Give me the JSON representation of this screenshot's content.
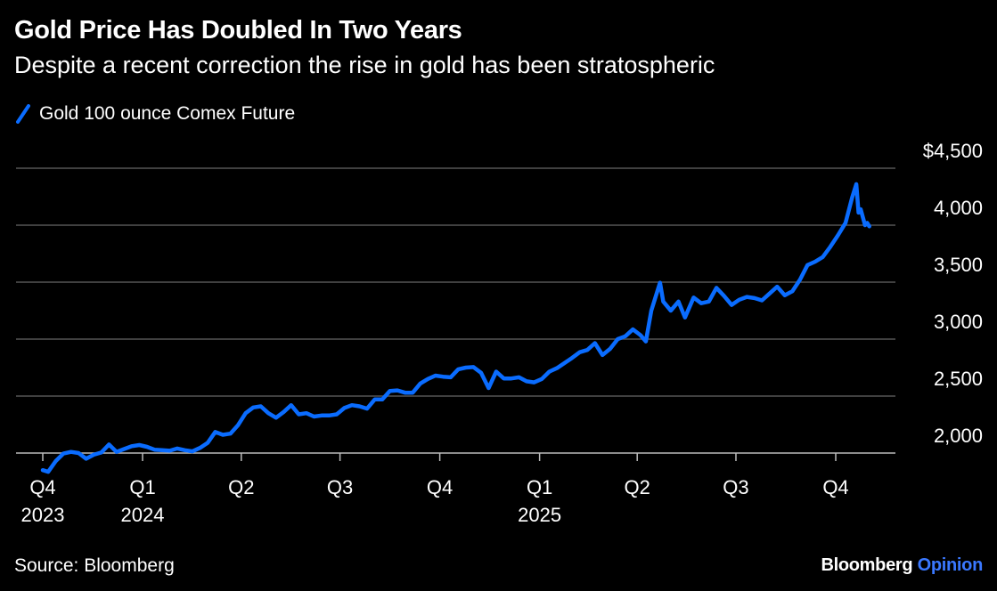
{
  "header": {
    "title": "Gold Price Has Doubled In Two Years",
    "subtitle": "Despite a recent correction the rise in gold has been stratospheric"
  },
  "footer": {
    "source": "Source: Bloomberg",
    "brand_main": "Bloomberg",
    "brand_accent": "Opinion"
  },
  "colors": {
    "background": "#000000",
    "series": "#0a6cff",
    "grid": "#555555",
    "text": "#ffffff",
    "brand_accent": "#3a78ff"
  },
  "chart_data": {
    "type": "line",
    "title": "Gold Price Has Doubled In Two Years",
    "subtitle": "Despite a recent correction the rise in gold has been stratospheric",
    "legend": "top-left",
    "grid": true,
    "ylim": [
      1750,
      4500
    ],
    "y_ticks": [
      {
        "value": 4500,
        "label": "$4,500"
      },
      {
        "value": 4000,
        "label": "4,000"
      },
      {
        "value": 3500,
        "label": "3,500"
      },
      {
        "value": 3000,
        "label": "3,000"
      },
      {
        "value": 2500,
        "label": "2,500"
      },
      {
        "value": 2000,
        "label": "2,000"
      }
    ],
    "x_ticks": [
      {
        "date": "2023-10-01",
        "label": "Q4",
        "year": "2023"
      },
      {
        "date": "2024-01-01",
        "label": "Q1",
        "year": "2024"
      },
      {
        "date": "2024-04-01",
        "label": "Q2",
        "year": ""
      },
      {
        "date": "2024-07-01",
        "label": "Q3",
        "year": ""
      },
      {
        "date": "2024-10-01",
        "label": "Q4",
        "year": ""
      },
      {
        "date": "2025-01-01",
        "label": "Q1",
        "year": "2025"
      },
      {
        "date": "2025-04-01",
        "label": "Q2",
        "year": ""
      },
      {
        "date": "2025-07-01",
        "label": "Q3",
        "year": ""
      },
      {
        "date": "2025-10-01",
        "label": "Q4",
        "year": ""
      }
    ],
    "series": [
      {
        "name": "Gold 100 ounce Comex Future",
        "points": [
          [
            "2023-10-01",
            1850
          ],
          [
            "2023-10-06",
            1835
          ],
          [
            "2023-10-13",
            1930
          ],
          [
            "2023-10-20",
            1995
          ],
          [
            "2023-10-27",
            2010
          ],
          [
            "2023-11-03",
            2000
          ],
          [
            "2023-11-10",
            1950
          ],
          [
            "2023-11-17",
            1985
          ],
          [
            "2023-11-24",
            2005
          ],
          [
            "2023-12-01",
            2075
          ],
          [
            "2023-12-08",
            2010
          ],
          [
            "2023-12-15",
            2035
          ],
          [
            "2023-12-22",
            2060
          ],
          [
            "2023-12-29",
            2070
          ],
          [
            "2024-01-05",
            2055
          ],
          [
            "2024-01-12",
            2030
          ],
          [
            "2024-01-19",
            2025
          ],
          [
            "2024-01-26",
            2020
          ],
          [
            "2024-02-02",
            2040
          ],
          [
            "2024-02-09",
            2025
          ],
          [
            "2024-02-16",
            2015
          ],
          [
            "2024-02-23",
            2045
          ],
          [
            "2024-03-01",
            2090
          ],
          [
            "2024-03-08",
            2185
          ],
          [
            "2024-03-15",
            2160
          ],
          [
            "2024-03-22",
            2170
          ],
          [
            "2024-03-29",
            2245
          ],
          [
            "2024-04-05",
            2350
          ],
          [
            "2024-04-12",
            2400
          ],
          [
            "2024-04-19",
            2410
          ],
          [
            "2024-04-26",
            2350
          ],
          [
            "2024-05-03",
            2310
          ],
          [
            "2024-05-10",
            2360
          ],
          [
            "2024-05-17",
            2420
          ],
          [
            "2024-05-24",
            2340
          ],
          [
            "2024-05-31",
            2350
          ],
          [
            "2024-06-07",
            2320
          ],
          [
            "2024-06-14",
            2330
          ],
          [
            "2024-06-21",
            2330
          ],
          [
            "2024-06-28",
            2340
          ],
          [
            "2024-07-05",
            2395
          ],
          [
            "2024-07-12",
            2420
          ],
          [
            "2024-07-19",
            2410
          ],
          [
            "2024-07-26",
            2390
          ],
          [
            "2024-08-02",
            2470
          ],
          [
            "2024-08-09",
            2470
          ],
          [
            "2024-08-16",
            2545
          ],
          [
            "2024-08-23",
            2550
          ],
          [
            "2024-08-30",
            2530
          ],
          [
            "2024-09-06",
            2530
          ],
          [
            "2024-09-13",
            2610
          ],
          [
            "2024-09-20",
            2650
          ],
          [
            "2024-09-27",
            2680
          ],
          [
            "2024-10-04",
            2670
          ],
          [
            "2024-10-11",
            2665
          ],
          [
            "2024-10-18",
            2735
          ],
          [
            "2024-10-25",
            2750
          ],
          [
            "2024-11-01",
            2755
          ],
          [
            "2024-11-08",
            2705
          ],
          [
            "2024-11-15",
            2570
          ],
          [
            "2024-11-22",
            2715
          ],
          [
            "2024-11-29",
            2655
          ],
          [
            "2024-12-06",
            2655
          ],
          [
            "2024-12-13",
            2665
          ],
          [
            "2024-12-20",
            2630
          ],
          [
            "2024-12-27",
            2620
          ],
          [
            "2025-01-03",
            2650
          ],
          [
            "2025-01-10",
            2715
          ],
          [
            "2025-01-17",
            2745
          ],
          [
            "2025-01-24",
            2790
          ],
          [
            "2025-01-31",
            2835
          ],
          [
            "2025-02-07",
            2885
          ],
          [
            "2025-02-14",
            2905
          ],
          [
            "2025-02-21",
            2965
          ],
          [
            "2025-02-28",
            2860
          ],
          [
            "2025-03-07",
            2915
          ],
          [
            "2025-03-14",
            3000
          ],
          [
            "2025-03-21",
            3025
          ],
          [
            "2025-03-28",
            3085
          ],
          [
            "2025-04-04",
            3035
          ],
          [
            "2025-04-09",
            2980
          ],
          [
            "2025-04-14",
            3250
          ],
          [
            "2025-04-22",
            3495
          ],
          [
            "2025-04-25",
            3330
          ],
          [
            "2025-05-02",
            3250
          ],
          [
            "2025-05-09",
            3330
          ],
          [
            "2025-05-15",
            3190
          ],
          [
            "2025-05-23",
            3365
          ],
          [
            "2025-05-30",
            3315
          ],
          [
            "2025-06-06",
            3330
          ],
          [
            "2025-06-13",
            3450
          ],
          [
            "2025-06-20",
            3380
          ],
          [
            "2025-06-27",
            3300
          ],
          [
            "2025-07-04",
            3345
          ],
          [
            "2025-07-11",
            3370
          ],
          [
            "2025-07-18",
            3360
          ],
          [
            "2025-07-25",
            3340
          ],
          [
            "2025-08-01",
            3400
          ],
          [
            "2025-08-08",
            3460
          ],
          [
            "2025-08-15",
            3385
          ],
          [
            "2025-08-22",
            3420
          ],
          [
            "2025-08-29",
            3520
          ],
          [
            "2025-09-05",
            3650
          ],
          [
            "2025-09-12",
            3680
          ],
          [
            "2025-09-19",
            3720
          ],
          [
            "2025-09-26",
            3810
          ],
          [
            "2025-10-03",
            3910
          ],
          [
            "2025-10-10",
            4020
          ],
          [
            "2025-10-16",
            4240
          ],
          [
            "2025-10-20",
            4360
          ],
          [
            "2025-10-22",
            4110
          ],
          [
            "2025-10-24",
            4140
          ],
          [
            "2025-10-28",
            4000
          ],
          [
            "2025-10-30",
            4020
          ],
          [
            "2025-11-01",
            3990
          ]
        ]
      }
    ]
  }
}
